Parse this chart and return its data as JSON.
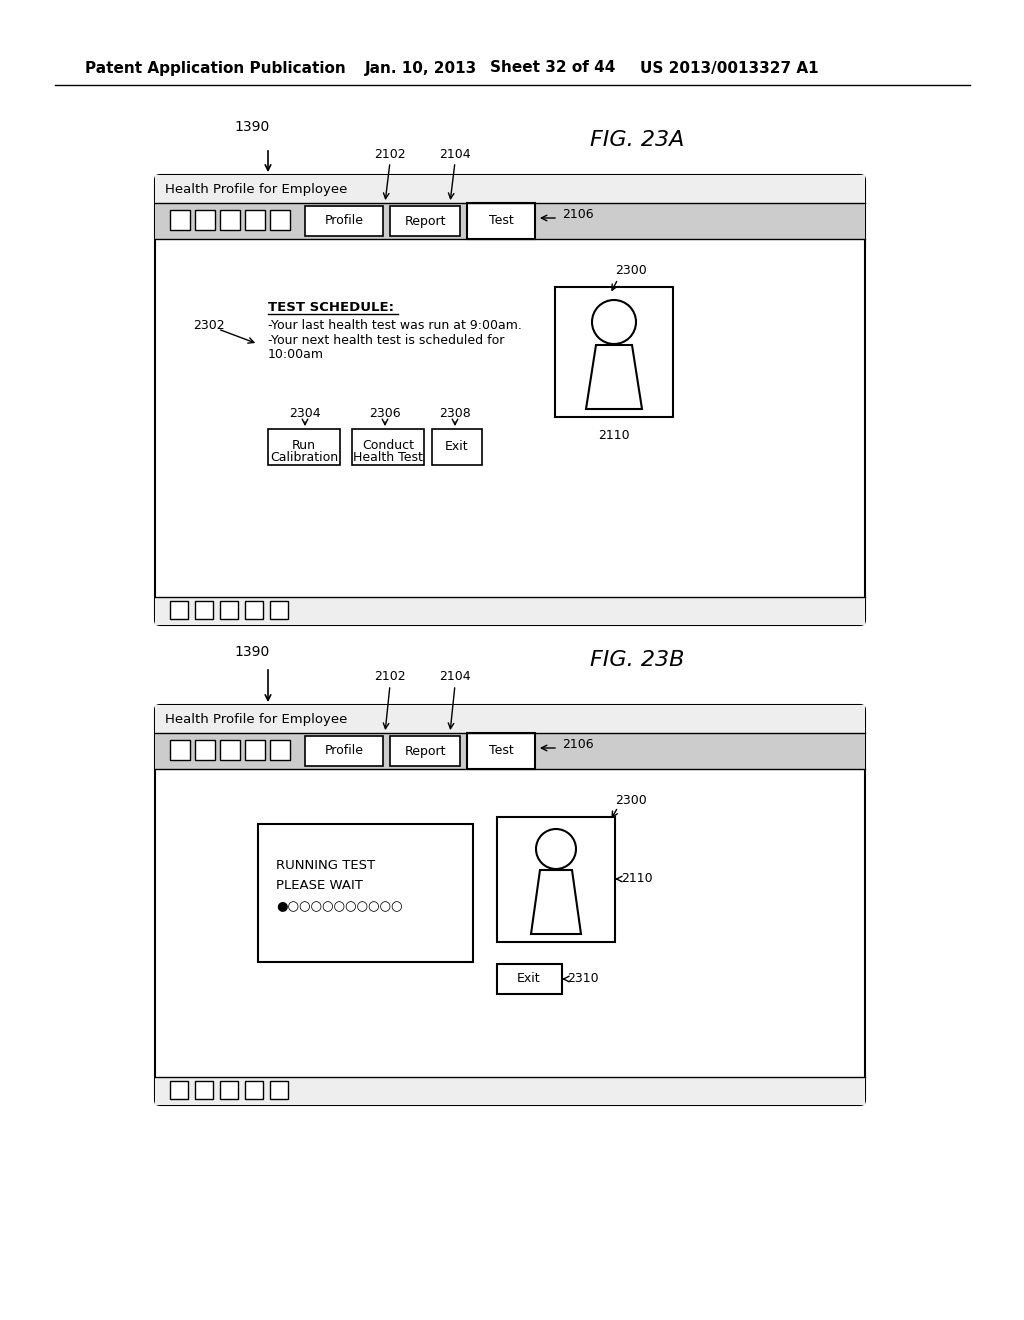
{
  "bg_color": "#ffffff",
  "header_text": "Patent Application Publication",
  "header_date": "Jan. 10, 2013",
  "header_sheet": "Sheet 32 of 44",
  "header_patent": "US 2013/0013327 A1",
  "fig23a_label": "FIG. 23A",
  "fig23b_label": "FIG. 23B",
  "fig23a_ref": "1390",
  "fig23b_ref": "1390",
  "window_title": "Health Profile for Employee",
  "tab1": "Profile",
  "tab2": "Report",
  "tab3": "Test",
  "ref_2102": "2102",
  "ref_2104": "2104",
  "ref_2106": "2106",
  "ref_2110": "2110",
  "ref_2300": "2300",
  "ref_2302": "2302",
  "ref_2304": "2304",
  "ref_2306": "2306",
  "ref_2308": "2308",
  "ref_2310": "2310",
  "test_schedule_title": "TEST SCHEDULE:",
  "test_schedule_line1": "-Your last health test was run at 9:00am.",
  "test_schedule_line2": "-Your next health test is scheduled for",
  "test_schedule_line3": "10:00am",
  "btn_run_cal_line1": "Run",
  "btn_run_cal_line2": "Calibration",
  "btn_conduct_line1": "Conduct",
  "btn_conduct_line2": "Health Test",
  "btn_exit": "Exit",
  "running_test_line1": "RUNNING TEST",
  "running_test_line2": "PLEASE WAIT",
  "running_test_line3": "●○○○○○○○○○○",
  "btn_exit2": "Exit"
}
